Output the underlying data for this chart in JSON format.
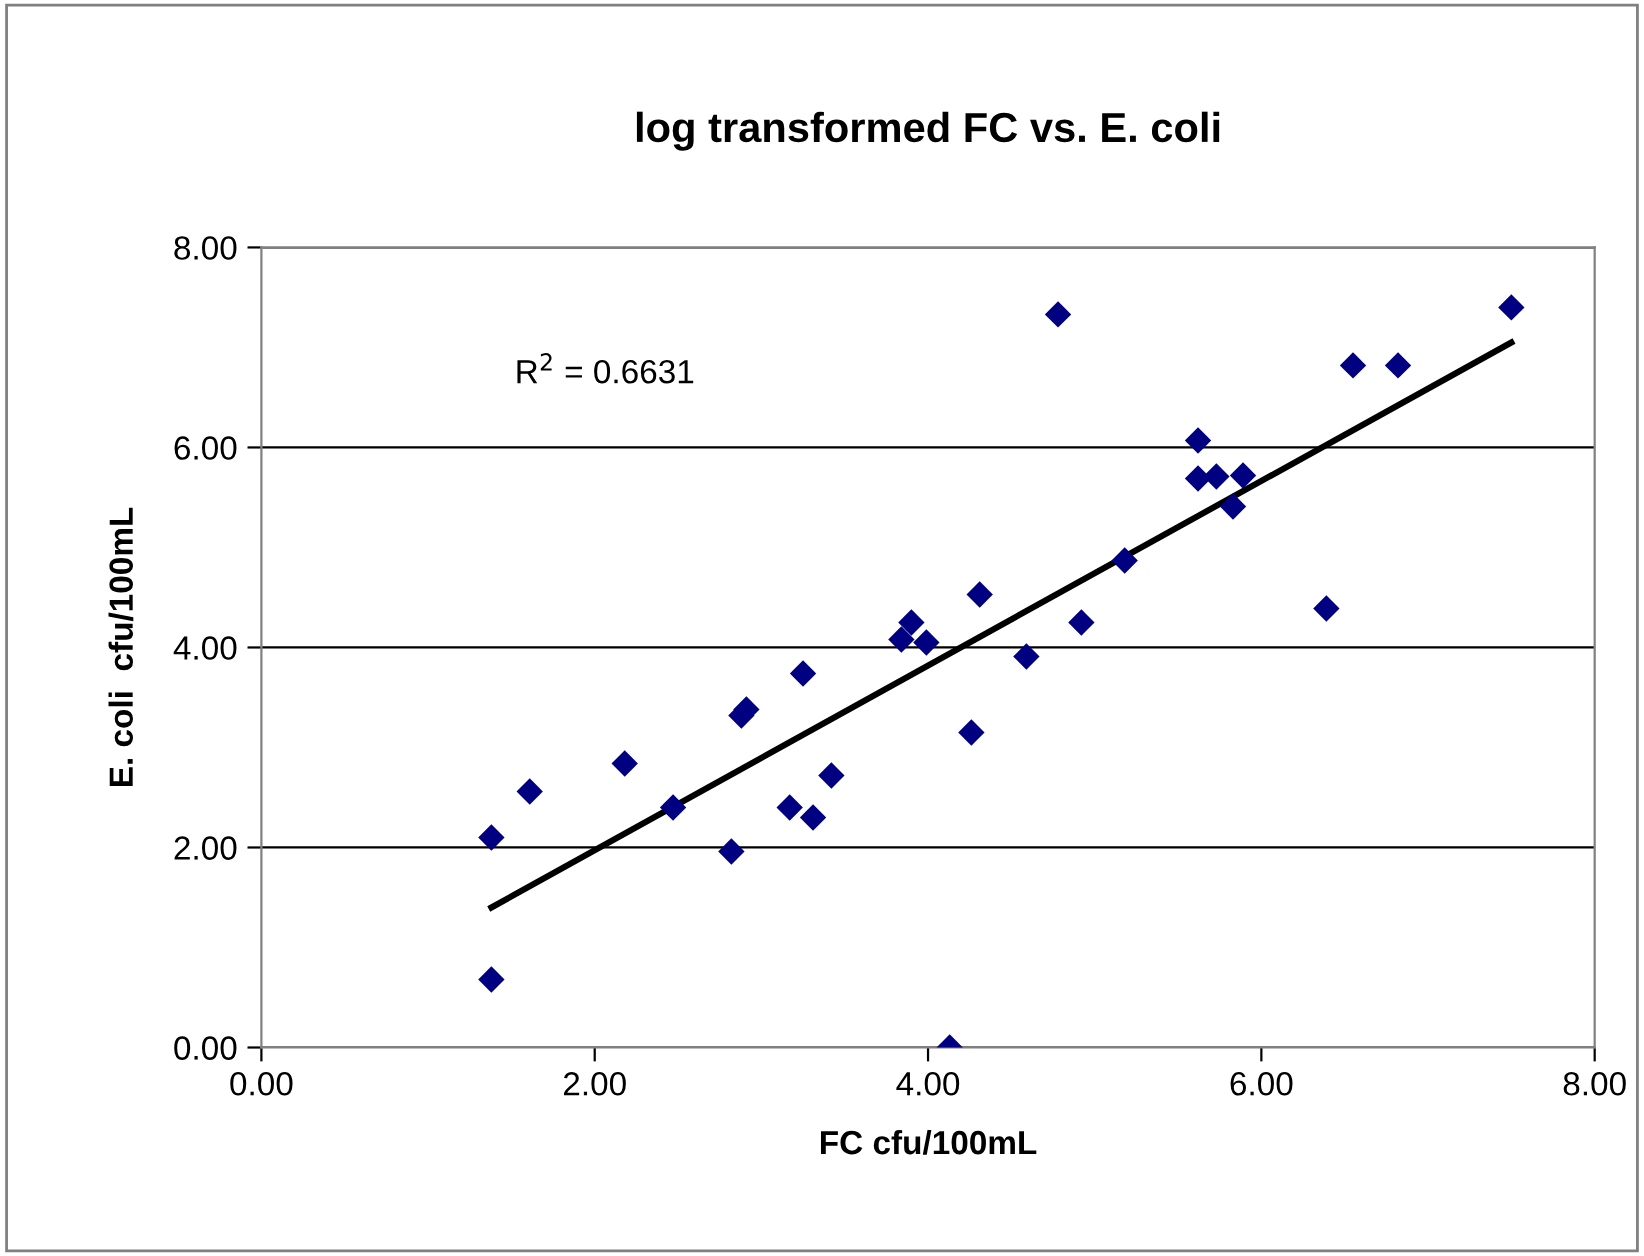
{
  "chart_data": {
    "type": "scatter",
    "title": "log transformed FC vs. E. coli",
    "xlabel": "FC cfu/100mL",
    "ylabel": "E. coli  cfu/100mL",
    "annotations": [
      "R$^{2}$ = 0.6631"
    ],
    "xlim": [
      0,
      8
    ],
    "ylim": [
      0,
      8
    ],
    "xticks": [
      {
        "value": 0,
        "label": "0.00"
      },
      {
        "value": 2,
        "label": "2.00"
      },
      {
        "value": 4,
        "label": "4.00"
      },
      {
        "value": 6,
        "label": "6.00"
      },
      {
        "value": 8,
        "label": "8.00"
      }
    ],
    "yticks": [
      {
        "value": 0,
        "label": "0.00"
      },
      {
        "value": 2,
        "label": "2.00"
      },
      {
        "value": 4,
        "label": "4.00"
      },
      {
        "value": 6,
        "label": "6.00"
      },
      {
        "value": 8,
        "label": "8.00"
      }
    ],
    "grid": "y",
    "legend": false,
    "marker": "diamond",
    "series": [
      {
        "color": "#000080",
        "x": [
          1.38,
          1.38,
          1.61,
          2.18,
          2.47,
          2.82,
          2.88,
          2.91,
          3.25,
          3.17,
          3.31,
          3.42,
          3.9,
          3.84,
          3.99,
          4.31,
          4.26,
          4.59,
          4.92,
          5.18,
          4.78,
          5.62,
          5.62,
          5.73,
          5.89,
          5.83,
          6.39,
          6.55,
          6.82,
          7.5,
          4.13
        ],
        "values": [
          2.1,
          0.68,
          2.56,
          2.84,
          2.4,
          1.96,
          3.32,
          3.38,
          3.74,
          2.4,
          2.3,
          2.72,
          4.25,
          4.08,
          4.05,
          4.53,
          3.15,
          3.91,
          4.25,
          4.87,
          7.33,
          6.07,
          5.69,
          5.71,
          5.72,
          5.41,
          4.39,
          6.82,
          6.82,
          7.4,
          0
        ]
      },
      {
        "type": "line",
        "color": "#000000",
        "marker": "none",
        "x": [
          1.38,
          7.5
        ],
        "values": [
          1.4,
          7.05
        ]
      }
    ]
  }
}
